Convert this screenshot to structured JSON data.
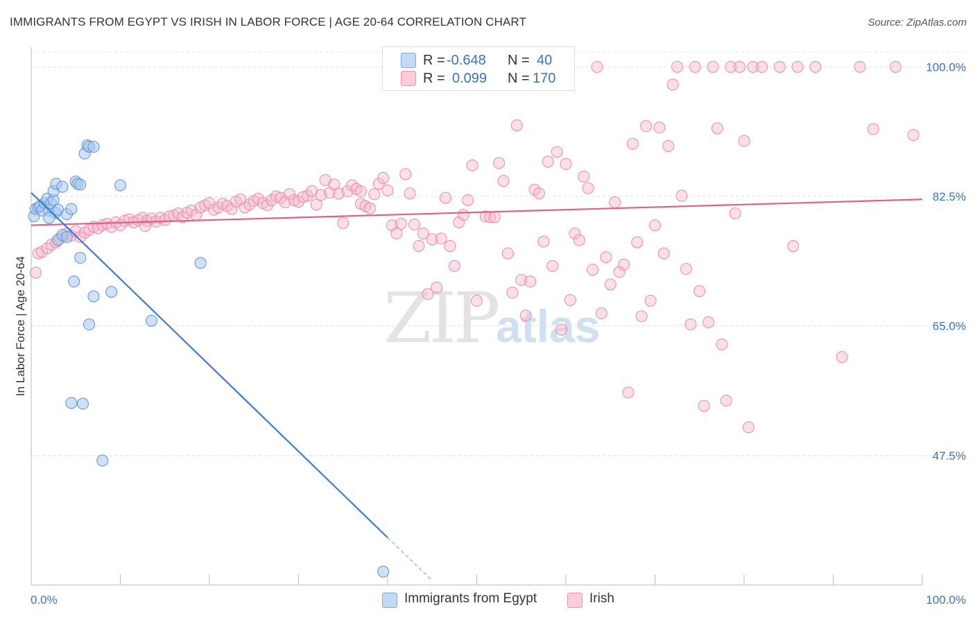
{
  "title": "IMMIGRANTS FROM EGYPT VS IRISH IN LABOR FORCE | AGE 20-64 CORRELATION CHART",
  "source": "Source: ZipAtlas.com",
  "watermark": {
    "zip": "ZIP",
    "atlas": "atlas"
  },
  "legend": {
    "rows": [
      {
        "r_label": "R =",
        "r_value": "-0.648",
        "n_label": "N =",
        "n_value": "40",
        "color": "#a8c8f0"
      },
      {
        "r_label": "R =",
        "r_value": "0.099",
        "n_label": "N =",
        "n_value": "170",
        "color": "#f8b8ca"
      }
    ]
  },
  "bottom_legend": [
    {
      "label": "Immigrants from Egypt",
      "color": "#a8c8f0"
    },
    {
      "label": "Irish",
      "color": "#f8b8ca"
    }
  ],
  "colors": {
    "egypt_fill": "#a8c8f0",
    "egypt_stroke": "#5b92d6",
    "egypt_line": "#3a7bd5",
    "irish_fill": "#f8b8ca",
    "irish_stroke": "#e88aa6",
    "irish_line": "#e0608a",
    "tick_label": "#3a73c7"
  },
  "chart_data": {
    "type": "scatter",
    "title": "IMMIGRANTS FROM EGYPT VS IRISH IN LABOR FORCE | AGE 20-64 CORRELATION CHART",
    "xlabel": "",
    "ylabel": "In Labor Force | Age 20-64",
    "xlim": [
      0,
      100
    ],
    "ylim": [
      30,
      102
    ],
    "x_tick_labels": [
      "0.0%",
      "100.0%"
    ],
    "y_tick_labels": [
      "100.0%",
      "82.5%",
      "65.0%",
      "47.5%"
    ],
    "y_tick_values": [
      100,
      82.5,
      65,
      47.5
    ],
    "grid": true,
    "series": [
      {
        "name": "Immigrants from Egypt",
        "trend": {
          "x": [
            0,
            40
          ],
          "y": [
            83.0,
            36.4
          ],
          "dashed_to": [
            45,
            30.6
          ]
        },
        "points": [
          [
            0.3,
            79.8
          ],
          [
            0.5,
            80.8
          ],
          [
            0.8,
            81.0
          ],
          [
            1.0,
            81.2
          ],
          [
            1.2,
            80.6
          ],
          [
            1.5,
            81.6
          ],
          [
            1.8,
            82.2
          ],
          [
            2.0,
            80.6
          ],
          [
            2.2,
            81.6
          ],
          [
            2.5,
            82.0
          ],
          [
            2.7,
            80.3
          ],
          [
            3.0,
            80.7
          ],
          [
            2.5,
            83.2
          ],
          [
            2.8,
            84.2
          ],
          [
            3.5,
            83.8
          ],
          [
            4.0,
            80.1
          ],
          [
            4.5,
            80.8
          ],
          [
            5.0,
            84.5
          ],
          [
            5.2,
            84.2
          ],
          [
            5.5,
            84.1
          ],
          [
            6.0,
            88.3
          ],
          [
            6.3,
            89.4
          ],
          [
            6.5,
            89.2
          ],
          [
            7.0,
            89.2
          ],
          [
            10.0,
            84.0
          ],
          [
            3.0,
            76.6
          ],
          [
            3.5,
            77.3
          ],
          [
            4.0,
            77.0
          ],
          [
            5.5,
            74.2
          ],
          [
            4.8,
            71.0
          ],
          [
            7.0,
            69.0
          ],
          [
            9.0,
            69.6
          ],
          [
            6.5,
            65.2
          ],
          [
            13.5,
            65.7
          ],
          [
            19.0,
            73.5
          ],
          [
            4.5,
            54.6
          ],
          [
            5.8,
            54.5
          ],
          [
            8.0,
            46.8
          ],
          [
            39.5,
            31.8
          ],
          [
            2.0,
            79.6
          ]
        ]
      },
      {
        "name": "Irish",
        "trend": {
          "x": [
            0,
            100
          ],
          "y": [
            78.6,
            82.1
          ]
        },
        "points": [
          [
            0.5,
            72.2
          ],
          [
            0.8,
            74.8
          ],
          [
            1.2,
            75.0
          ],
          [
            1.8,
            75.5
          ],
          [
            2.3,
            76.0
          ],
          [
            2.8,
            76.3
          ],
          [
            3.2,
            76.8
          ],
          [
            3.6,
            77.1
          ],
          [
            4.0,
            77.5
          ],
          [
            4.5,
            77.2
          ],
          [
            5.0,
            77.8
          ],
          [
            5.5,
            77.0
          ],
          [
            6.0,
            77.6
          ],
          [
            6.5,
            78.0
          ],
          [
            7.0,
            78.4
          ],
          [
            7.5,
            78.2
          ],
          [
            8.0,
            78.6
          ],
          [
            8.5,
            78.8
          ],
          [
            9.0,
            78.4
          ],
          [
            9.5,
            79.0
          ],
          [
            10.0,
            78.6
          ],
          [
            10.5,
            79.2
          ],
          [
            11.0,
            79.4
          ],
          [
            11.5,
            79.0
          ],
          [
            12.0,
            79.3
          ],
          [
            12.5,
            79.6
          ],
          [
            13.0,
            79.2
          ],
          [
            13.5,
            79.5
          ],
          [
            14.0,
            79.1
          ],
          [
            14.5,
            79.6
          ],
          [
            15.0,
            79.3
          ],
          [
            15.5,
            79.8
          ],
          [
            16.0,
            79.9
          ],
          [
            16.5,
            80.2
          ],
          [
            17.0,
            79.7
          ],
          [
            17.5,
            80.3
          ],
          [
            18.0,
            80.6
          ],
          [
            18.5,
            80.0
          ],
          [
            19.0,
            81.0
          ],
          [
            19.5,
            81.3
          ],
          [
            20.0,
            81.6
          ],
          [
            20.5,
            80.7
          ],
          [
            21.0,
            81.0
          ],
          [
            21.5,
            81.5
          ],
          [
            22.0,
            81.2
          ],
          [
            22.5,
            80.8
          ],
          [
            23.0,
            81.8
          ],
          [
            23.5,
            82.1
          ],
          [
            24.0,
            81.0
          ],
          [
            24.5,
            81.4
          ],
          [
            25.0,
            81.9
          ],
          [
            25.5,
            82.2
          ],
          [
            26.0,
            81.6
          ],
          [
            26.5,
            81.3
          ],
          [
            27.0,
            82.0
          ],
          [
            27.5,
            82.5
          ],
          [
            28.0,
            82.3
          ],
          [
            28.5,
            81.7
          ],
          [
            29.0,
            82.8
          ],
          [
            29.5,
            82.0
          ],
          [
            30.0,
            81.8
          ],
          [
            31.0,
            82.6
          ],
          [
            31.5,
            83.2
          ],
          [
            32.0,
            81.4
          ],
          [
            32.5,
            82.7
          ],
          [
            33.0,
            84.7
          ],
          [
            33.5,
            83.0
          ],
          [
            34.0,
            84.1
          ],
          [
            34.5,
            82.9
          ],
          [
            35.0,
            78.9
          ],
          [
            35.5,
            83.2
          ],
          [
            36.0,
            84.0
          ],
          [
            36.5,
            83.5
          ],
          [
            37.0,
            81.5
          ],
          [
            37.5,
            81.2
          ],
          [
            38.0,
            80.9
          ],
          [
            38.5,
            82.8
          ],
          [
            39.0,
            84.2
          ],
          [
            39.5,
            85.0
          ],
          [
            40.0,
            83.3
          ],
          [
            40.5,
            78.6
          ],
          [
            41.0,
            77.5
          ],
          [
            41.5,
            78.8
          ],
          [
            42.0,
            85.5
          ],
          [
            42.5,
            82.9
          ],
          [
            43.0,
            78.7
          ],
          [
            43.5,
            75.8
          ],
          [
            44.0,
            77.5
          ],
          [
            44.5,
            69.3
          ],
          [
            45.0,
            76.7
          ],
          [
            45.5,
            70.2
          ],
          [
            46.0,
            76.8
          ],
          [
            46.5,
            82.3
          ],
          [
            47.0,
            75.8
          ],
          [
            47.5,
            73.1
          ],
          [
            48.0,
            79.0
          ],
          [
            48.5,
            80.0
          ],
          [
            49.0,
            82.0
          ],
          [
            49.5,
            86.7
          ],
          [
            50.0,
            68.4
          ],
          [
            51.0,
            79.8
          ],
          [
            51.5,
            79.7
          ],
          [
            52.0,
            79.7
          ],
          [
            52.5,
            87.0
          ],
          [
            53.0,
            84.6
          ],
          [
            53.5,
            74.8
          ],
          [
            54.0,
            69.5
          ],
          [
            54.5,
            92.1
          ],
          [
            55.0,
            71.2
          ],
          [
            55.5,
            66.4
          ],
          [
            56.0,
            71.0
          ],
          [
            56.5,
            83.4
          ],
          [
            57.0,
            82.9
          ],
          [
            57.5,
            76.4
          ],
          [
            58.0,
            87.2
          ],
          [
            58.5,
            73.1
          ],
          [
            59.0,
            88.5
          ],
          [
            59.5,
            64.5
          ],
          [
            60.0,
            86.9
          ],
          [
            60.5,
            68.5
          ],
          [
            61.0,
            77.5
          ],
          [
            61.5,
            76.6
          ],
          [
            62.0,
            85.2
          ],
          [
            62.5,
            83.6
          ],
          [
            63.0,
            72.6
          ],
          [
            63.5,
            100.0
          ],
          [
            64.0,
            66.7
          ],
          [
            64.5,
            74.3
          ],
          [
            65.0,
            70.6
          ],
          [
            65.5,
            81.7
          ],
          [
            66.0,
            72.3
          ],
          [
            66.5,
            73.3
          ],
          [
            67.0,
            56.0
          ],
          [
            67.5,
            89.6
          ],
          [
            68.0,
            76.3
          ],
          [
            68.5,
            66.3
          ],
          [
            69.0,
            92.0
          ],
          [
            69.5,
            68.4
          ],
          [
            70.0,
            78.6
          ],
          [
            70.5,
            91.8
          ],
          [
            71.0,
            74.8
          ],
          [
            71.5,
            89.3
          ],
          [
            72.0,
            97.6
          ],
          [
            72.5,
            100.0
          ],
          [
            73.0,
            82.6
          ],
          [
            73.5,
            72.7
          ],
          [
            74.0,
            65.2
          ],
          [
            74.5,
            100.0
          ],
          [
            75.0,
            69.7
          ],
          [
            75.5,
            54.2
          ],
          [
            76.0,
            65.5
          ],
          [
            76.5,
            100.0
          ],
          [
            77.0,
            91.7
          ],
          [
            77.5,
            62.5
          ],
          [
            78.0,
            54.9
          ],
          [
            78.5,
            100.0
          ],
          [
            79.0,
            80.2
          ],
          [
            79.5,
            100.0
          ],
          [
            80.0,
            90.0
          ],
          [
            80.5,
            51.3
          ],
          [
            81.0,
            100.0
          ],
          [
            82.0,
            100.0
          ],
          [
            84.0,
            100.0
          ],
          [
            85.5,
            75.8
          ],
          [
            86.0,
            100.0
          ],
          [
            88.0,
            100.0
          ],
          [
            91.0,
            60.8
          ],
          [
            93.0,
            100.0
          ],
          [
            94.5,
            91.6
          ],
          [
            97.0,
            100.0
          ],
          [
            99.0,
            90.8
          ],
          [
            37.0,
            83.2
          ],
          [
            30.5,
            82.4
          ],
          [
            12.8,
            78.5
          ]
        ]
      }
    ]
  }
}
